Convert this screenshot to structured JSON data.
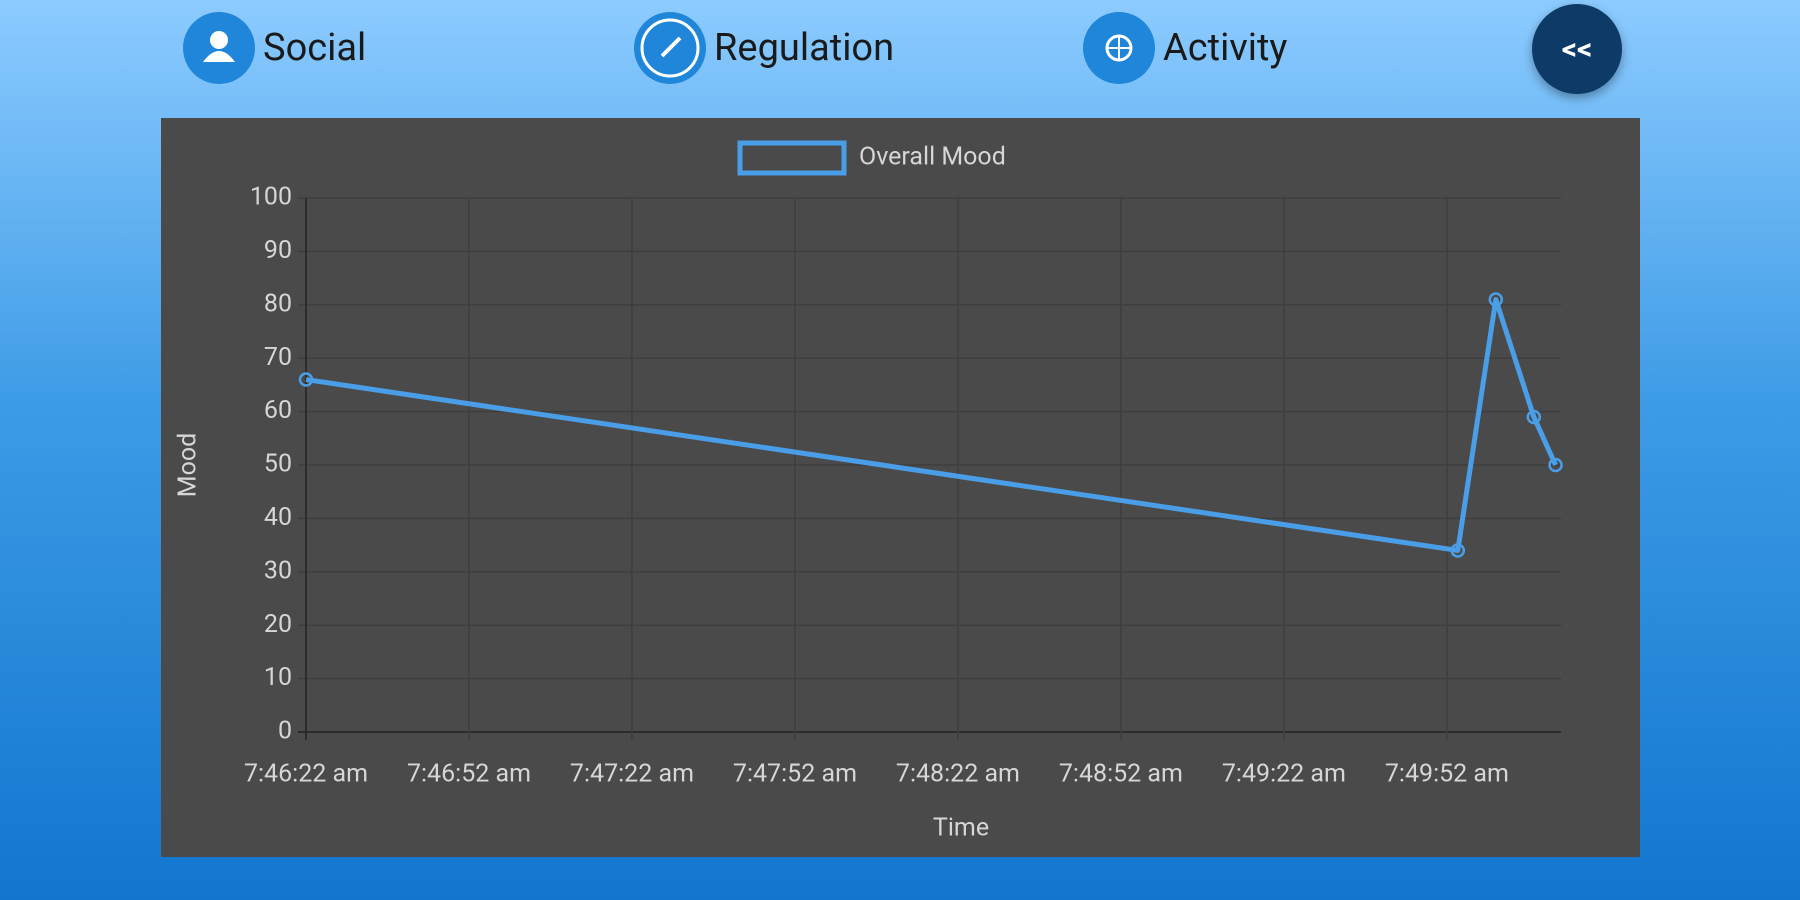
{
  "nav": {
    "items": [
      "Social",
      "Regulation",
      "Activity"
    ],
    "back": "<<"
  },
  "chart_data": {
    "type": "line",
    "xlabel": "Time",
    "ylabel": "Mood",
    "x": [
      "7:46:22 am",
      "7:49:54 am",
      "7:50:01 am",
      "7:50:08 am",
      "7:50:12 am"
    ],
    "series": [
      {
        "name": "Overall Mood",
        "color": "#4a9ee8",
        "values": [
          66,
          34,
          81,
          59,
          50
        ]
      }
    ],
    "xlim": [
      "7:46:22 am",
      "7:50:13 am"
    ],
    "xticks": [
      "7:46:22 am",
      "7:46:52 am",
      "7:47:22 am",
      "7:47:52 am",
      "7:48:22 am",
      "7:48:52 am",
      "7:49:22 am",
      "7:49:52 am"
    ],
    "ylim": [
      0,
      100
    ],
    "yticks": [
      0,
      10,
      20,
      30,
      40,
      50,
      60,
      70,
      80,
      90,
      100
    ],
    "grid": true,
    "legend": "top"
  }
}
